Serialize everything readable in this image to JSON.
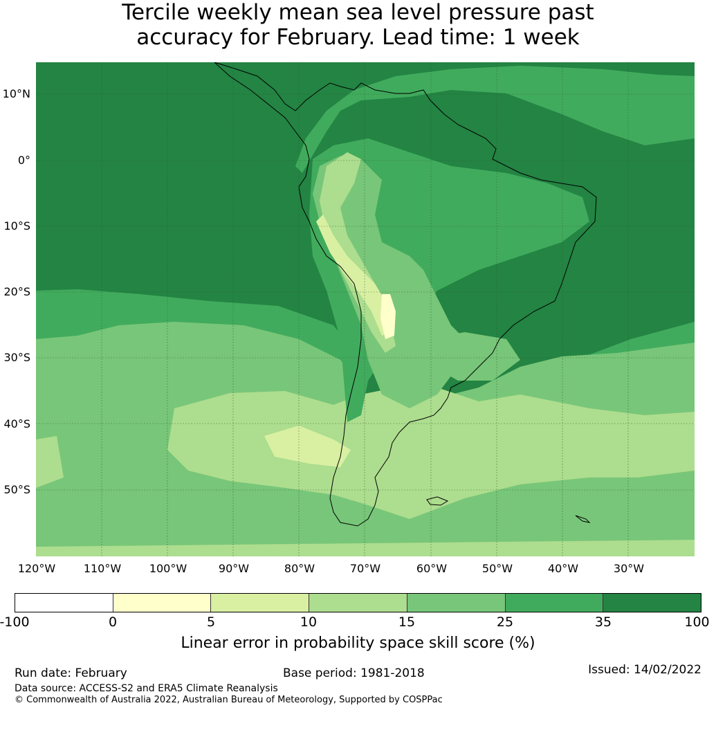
{
  "title": {
    "line1": "Tercile weekly mean sea level pressure past",
    "line2": "accuracy for February. Lead time: 1 week"
  },
  "map": {
    "lat_labels": [
      "10°N",
      "0°",
      "10°S",
      "20°S",
      "30°S",
      "40°S",
      "50°S"
    ],
    "lon_labels": [
      "120°W",
      "110°W",
      "100°W",
      "90°W",
      "80°W",
      "70°W",
      "60°W",
      "50°W",
      "40°W",
      "30°W"
    ],
    "colors": {
      "below_0": "#ffffff",
      "c0_5": "#ffffcc",
      "c5_10": "#d9f0a3",
      "c10_15": "#addd8e",
      "c15_25": "#78c679",
      "c25_35": "#41ab5d",
      "c35_100": "#238443",
      "coast": "#000000",
      "grid": "#2b5a2b"
    }
  },
  "colorbar": {
    "ticks": [
      "-100",
      "0",
      "5",
      "10",
      "15",
      "25",
      "35",
      "100"
    ],
    "label": "Linear error in probability space skill score (%)"
  },
  "footer": {
    "run_date": "Run date: February",
    "base_period": "Base period: 1981-2018",
    "issued": "Issued: 14/02/2022",
    "data_source": "Data source: ACCESS-S2 and ERA5 Climate Reanalysis",
    "copyright": "© Commonwealth of Australia 2022, Australian Bureau of Meteorology, Supported by COSPPac"
  }
}
